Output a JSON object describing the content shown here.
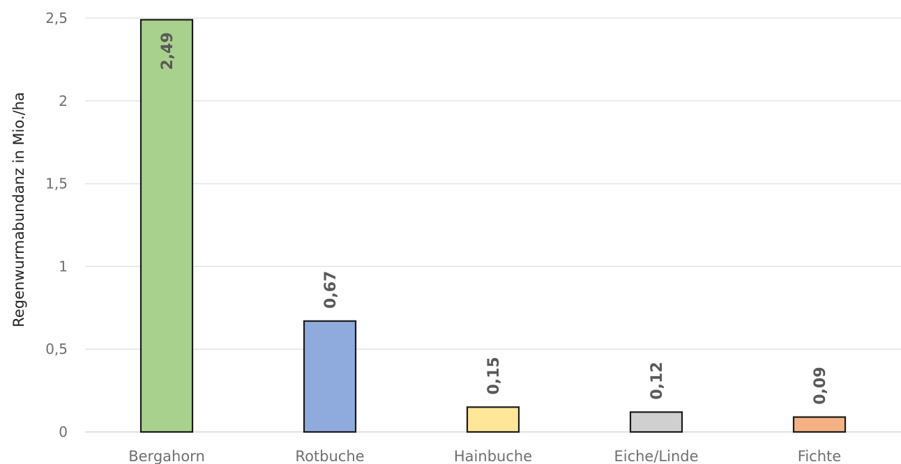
{
  "chart_data": {
    "type": "bar",
    "title": "",
    "xlabel": "",
    "ylabel": "Regenwurmabundanz in Mio./ha",
    "categories": [
      "Bergahorn",
      "Rotbuche",
      "Hainbuche",
      "Eiche/Linde",
      "Fichte"
    ],
    "values": [
      2.49,
      0.67,
      0.15,
      0.12,
      0.09
    ],
    "value_labels": [
      "2,49",
      "0,67",
      "0,15",
      "0,12",
      "0,09"
    ],
    "colors": [
      "#a9d18e",
      "#8faadc",
      "#ffe699",
      "#d0d0d0",
      "#f4b183"
    ],
    "ylim": [
      0,
      2.5
    ],
    "yticks": [
      0,
      0.5,
      1,
      1.5,
      2,
      2.5
    ],
    "ytick_labels": [
      "0",
      "0,5",
      "1",
      "1,5",
      "2",
      "2,5"
    ],
    "grid": true,
    "legend": "none"
  }
}
